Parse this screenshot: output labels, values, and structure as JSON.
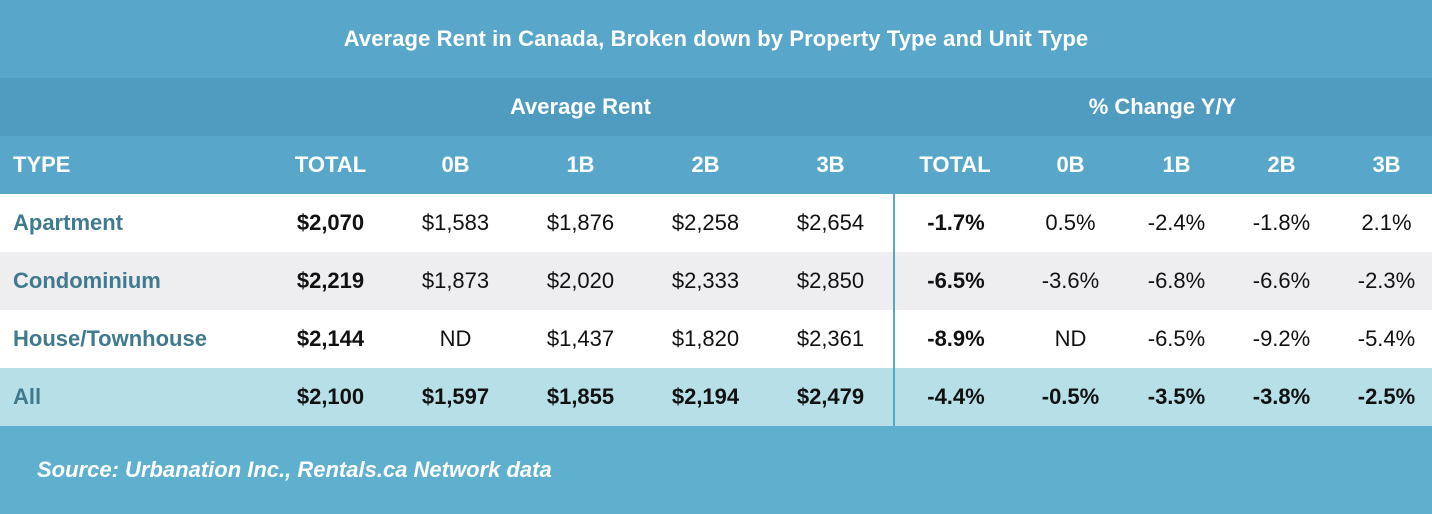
{
  "title": "Average Rent in Canada, Broken down by Property Type and Unit Type",
  "group_headers": {
    "average_rent": "Average Rent",
    "pct_change": "% Change Y/Y"
  },
  "columns": [
    "TYPE",
    "TOTAL",
    "0B",
    "1B",
    "2B",
    "3B",
    "TOTAL",
    "0B",
    "1B",
    "2B",
    "3B"
  ],
  "rows": [
    {
      "type": "Apartment",
      "cells": [
        "$2,070",
        "$1,583",
        "$1,876",
        "$2,258",
        "$2,654",
        "-1.7%",
        "0.5%",
        "-2.4%",
        "-1.8%",
        "2.1%"
      ]
    },
    {
      "type": "Condominium",
      "cells": [
        "$2,219",
        "$1,873",
        "$2,020",
        "$2,333",
        "$2,850",
        "-6.5%",
        "-3.6%",
        "-6.8%",
        "-6.6%",
        "-2.3%"
      ]
    },
    {
      "type": "House/Townhouse",
      "cells": [
        "$2,144",
        "ND",
        "$1,437",
        "$1,820",
        "$2,361",
        "-8.9%",
        "ND",
        "-6.5%",
        "-9.2%",
        "-5.4%"
      ]
    },
    {
      "type": "All",
      "cells": [
        "$2,100",
        "$1,597",
        "$1,855",
        "$2,194",
        "$2,479",
        "-4.4%",
        "-0.5%",
        "-3.5%",
        "-3.8%",
        "-2.5%"
      ]
    }
  ],
  "source": "Source: Urbanation Inc., Rentals.ca Network data",
  "colors": {
    "header_blue": "#58a7cb",
    "group_header_blue": "#4f9cc0",
    "footer_blue": "#5fb0cf",
    "type_text": "#3f7a8e",
    "all_row": "#b6dfe8",
    "stripe_grey": "#eeedf0"
  },
  "chart_data": {
    "type": "table",
    "title": "Average Rent in Canada, Broken down by Property Type and Unit Type",
    "column_groups": [
      {
        "label": "Average Rent",
        "columns": [
          "TOTAL",
          "0B",
          "1B",
          "2B",
          "3B"
        ]
      },
      {
        "label": "% Change Y/Y",
        "columns": [
          "TOTAL",
          "0B",
          "1B",
          "2B",
          "3B"
        ]
      }
    ],
    "columns": [
      "TYPE",
      "Avg TOTAL",
      "Avg 0B",
      "Avg 1B",
      "Avg 2B",
      "Avg 3B",
      "YoY TOTAL",
      "YoY 0B",
      "YoY 1B",
      "YoY 2B",
      "YoY 3B"
    ],
    "rows": [
      [
        "Apartment",
        2070,
        1583,
        1876,
        2258,
        2654,
        -1.7,
        0.5,
        -2.4,
        -1.8,
        2.1
      ],
      [
        "Condominium",
        2219,
        1873,
        2020,
        2333,
        2850,
        -6.5,
        -3.6,
        -6.8,
        -6.6,
        -2.3
      ],
      [
        "House/Townhouse",
        2144,
        "ND",
        1437,
        1820,
        2361,
        -8.9,
        "ND",
        -6.5,
        -9.2,
        -5.4
      ],
      [
        "All",
        2100,
        1597,
        1855,
        2194,
        2479,
        -4.4,
        -0.5,
        -3.5,
        -3.8,
        -2.5
      ]
    ],
    "units": {
      "average_rent": "CAD $",
      "pct_change": "%"
    },
    "source": "Source: Urbanation Inc., Rentals.ca Network data"
  }
}
